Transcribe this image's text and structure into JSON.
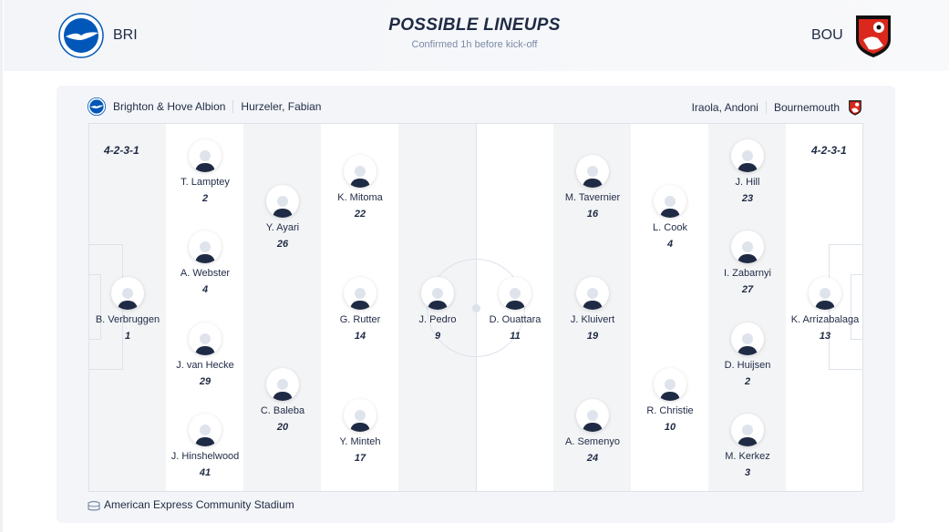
{
  "header": {
    "title": "POSSIBLE LINEUPS",
    "subtitle": "Confirmed 1h before kick-off",
    "home_code": "BRI",
    "away_code": "BOU"
  },
  "home": {
    "name": "Brighton & Hove Albion",
    "coach": "Hurzeler, Fabian",
    "formation": "4-2-3-1",
    "color": "#0057b8",
    "players": [
      {
        "name": "B. Verbruggen",
        "number": "1"
      },
      {
        "name": "T. Lamptey",
        "number": "2"
      },
      {
        "name": "A. Webster",
        "number": "4"
      },
      {
        "name": "J. van Hecke",
        "number": "29"
      },
      {
        "name": "J. Hinshelwood",
        "number": "41"
      },
      {
        "name": "Y. Ayari",
        "number": "26"
      },
      {
        "name": "C. Baleba",
        "number": "20"
      },
      {
        "name": "K. Mitoma",
        "number": "22"
      },
      {
        "name": "G. Rutter",
        "number": "14"
      },
      {
        "name": "Y. Minteh",
        "number": "17"
      },
      {
        "name": "J. Pedro",
        "number": "9"
      }
    ]
  },
  "away": {
    "name": "Bournemouth",
    "coach": "Iraola, Andoni",
    "formation": "4-2-3-1",
    "color": "#da291c",
    "players": [
      {
        "name": "D. Ouattara",
        "number": "11"
      },
      {
        "name": "M. Tavernier",
        "number": "16"
      },
      {
        "name": "J. Kluivert",
        "number": "19"
      },
      {
        "name": "A. Semenyo",
        "number": "24"
      },
      {
        "name": "L. Cook",
        "number": "4"
      },
      {
        "name": "R. Christie",
        "number": "10"
      },
      {
        "name": "J. Hill",
        "number": "23"
      },
      {
        "name": "I. Zabarnyi",
        "number": "27"
      },
      {
        "name": "D. Huijsen",
        "number": "2"
      },
      {
        "name": "M. Kerkez",
        "number": "3"
      },
      {
        "name": "K. Arrizabalaga",
        "number": "13"
      }
    ]
  },
  "venue": {
    "name": "American Express Community Stadium",
    "icon": "stadium-icon"
  }
}
